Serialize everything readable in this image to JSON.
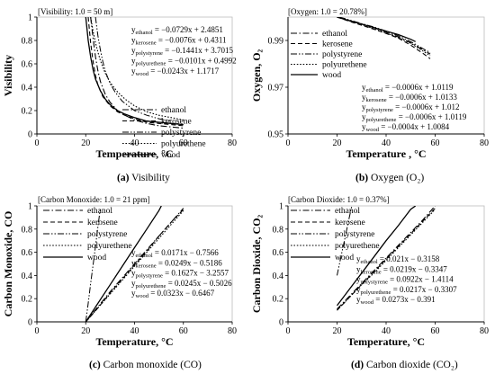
{
  "chart_data": [
    {
      "type": "line",
      "panel": "a",
      "caption_letter": "(a)",
      "caption_text": "Visibility",
      "note": "[Visibility: 1.0 = 50 m]",
      "xlabel": "Temperature, °C",
      "ylabel": "Visibility",
      "xlim": [
        0,
        80
      ],
      "ylim": [
        0,
        1
      ],
      "xticks": [
        "0",
        "20",
        "40",
        "60",
        "80"
      ],
      "yticks": [
        "0",
        "0.2",
        "0.4",
        "0.6",
        "0.8",
        "1"
      ],
      "legend_position": "lower-right",
      "equations_position": "top-right",
      "equations": [
        {
          "var": "y",
          "sub": "ethanol",
          "expr": " = −0.0729x + 2.4851"
        },
        {
          "var": "y",
          "sub": "kerosene",
          "expr": " = −0.0076x + 0.4311"
        },
        {
          "var": "y",
          "sub": "polystyrene",
          "expr": " = −0.1441x + 3.7015"
        },
        {
          "var": "y",
          "sub": "polyurethene",
          "expr": " = −0.0101x + 0.4992"
        },
        {
          "var": "y",
          "sub": "wood",
          "expr": " = −0.0243x + 1.1717"
        }
      ],
      "series": [
        {
          "name": "ethanol",
          "style": "dashdot",
          "x": [
            22,
            23,
            24,
            25,
            26,
            28,
            30,
            33,
            36,
            40,
            45,
            50,
            55,
            60
          ],
          "y": [
            1.0,
            0.82,
            0.66,
            0.54,
            0.45,
            0.34,
            0.27,
            0.2,
            0.16,
            0.12,
            0.09,
            0.07,
            0.06,
            0.05
          ]
        },
        {
          "name": "kerosene",
          "style": "dash",
          "x": [
            21,
            22,
            23,
            24,
            25,
            27,
            30,
            33,
            36,
            40,
            45,
            50,
            55,
            60
          ],
          "y": [
            1.0,
            0.78,
            0.62,
            0.5,
            0.42,
            0.32,
            0.24,
            0.19,
            0.16,
            0.13,
            0.1,
            0.09,
            0.08,
            0.07
          ]
        },
        {
          "name": "polystyrene",
          "style": "dashdotdot",
          "x": [
            24,
            25,
            26,
            27,
            28,
            30,
            32,
            35,
            40,
            45,
            50,
            55
          ],
          "y": [
            1.0,
            0.84,
            0.72,
            0.62,
            0.54,
            0.43,
            0.36,
            0.28,
            0.2,
            0.16,
            0.13,
            0.11
          ]
        },
        {
          "name": "polyurethene",
          "style": "dot",
          "x": [
            22,
            23,
            24,
            25,
            26,
            28,
            30,
            33,
            36,
            40,
            45,
            50,
            55,
            60
          ],
          "y": [
            1.0,
            0.88,
            0.78,
            0.7,
            0.63,
            0.52,
            0.44,
            0.36,
            0.3,
            0.24,
            0.19,
            0.16,
            0.14,
            0.12
          ]
        },
        {
          "name": "wood",
          "style": "solid",
          "x": [
            20,
            21,
            22,
            23,
            24,
            26,
            28,
            30,
            33,
            36,
            40,
            45,
            50,
            55,
            60
          ],
          "y": [
            1.0,
            0.8,
            0.66,
            0.55,
            0.47,
            0.37,
            0.3,
            0.25,
            0.2,
            0.17,
            0.14,
            0.11,
            0.1,
            0.09,
            0.08
          ]
        }
      ]
    },
    {
      "type": "line",
      "panel": "b",
      "caption_letter": "(b)",
      "caption_text": "Oxygen (O₂)",
      "note": "[Oxygen: 1.0 = 20.78%]",
      "xlabel": "Temperature , °C",
      "ylabel": "Oxygen, O₂",
      "xlim": [
        0,
        80
      ],
      "ylim": [
        0.95,
        1
      ],
      "xticks": [
        "0",
        "20",
        "40",
        "60",
        "80"
      ],
      "yticks": [
        "0.95",
        "0.97",
        "0.99"
      ],
      "ytick_values": [
        0.95,
        0.97,
        0.99
      ],
      "legend_position": "top-left",
      "equations_position": "bottom-right",
      "equations": [
        {
          "var": "y",
          "sub": "ethanol",
          "expr": " = −0.0006x + 1.0119"
        },
        {
          "var": "y",
          "sub": "kerosene",
          "expr": " = −0.0006x + 1.0133"
        },
        {
          "var": "y",
          "sub": "polystyrene",
          "expr": " = −0.0006x + 1.012"
        },
        {
          "var": "y",
          "sub": "polyurethene",
          "expr": " = −0.0006x + 1.0119"
        },
        {
          "var": "y",
          "sub": "wood",
          "expr": " = −0.0004x + 1.0084"
        }
      ],
      "series": [
        {
          "name": "ethanol",
          "style": "dashdot",
          "x": [
            20,
            25,
            30,
            35,
            40,
            45,
            50,
            55,
            58
          ],
          "y": [
            1.0,
            0.9985,
            0.997,
            0.9955,
            0.9935,
            0.9915,
            0.989,
            0.986,
            0.9842
          ]
        },
        {
          "name": "kerosene",
          "style": "dash",
          "x": [
            20,
            25,
            30,
            35,
            40,
            45,
            50,
            55,
            58
          ],
          "y": [
            1.0,
            0.9982,
            0.9965,
            0.9948,
            0.993,
            0.991,
            0.988,
            0.9845,
            0.9822
          ]
        },
        {
          "name": "polystyrene",
          "style": "dashdotdot",
          "x": [
            21,
            25,
            30,
            35,
            40,
            45,
            50,
            55,
            58
          ],
          "y": [
            1.0,
            0.9988,
            0.9972,
            0.9958,
            0.994,
            0.992,
            0.9895,
            0.9865,
            0.9848
          ]
        },
        {
          "name": "polyurethene",
          "style": "dot",
          "x": [
            20,
            25,
            30,
            35,
            40,
            45,
            50,
            55,
            58
          ],
          "y": [
            1.0,
            0.9984,
            0.9968,
            0.995,
            0.9932,
            0.9912,
            0.9888,
            0.9855,
            0.9835
          ]
        },
        {
          "name": "wood",
          "style": "solid",
          "x": [
            20,
            25,
            30,
            35,
            40,
            45,
            50,
            52
          ],
          "y": [
            1.0,
            0.9985,
            0.997,
            0.9955,
            0.994,
            0.9925,
            0.9905,
            0.9895
          ]
        }
      ]
    },
    {
      "type": "line",
      "panel": "c",
      "caption_letter": "(c)",
      "caption_text": "Carbon monoxide (CO)",
      "note": "[Carbon Monoxide: 1.0 = 21 ppm]",
      "xlabel": "Temperature, °C",
      "ylabel": "Carbon Monoxide, CO",
      "xlim": [
        0,
        80
      ],
      "ylim": [
        0,
        1
      ],
      "xticks": [
        "0",
        "20",
        "40",
        "60",
        "80"
      ],
      "yticks": [
        "0",
        "0.2",
        "0.4",
        "0.6",
        "0.8",
        "1"
      ],
      "legend_position": "top-left",
      "equations_position": "bottom-right",
      "equations": [
        {
          "var": "y",
          "sub": "ethanol",
          "expr": " = 0.0171x − 0.7566"
        },
        {
          "var": "y",
          "sub": "kerosene",
          "expr": " = 0.0249x − 0.5186"
        },
        {
          "var": "y",
          "sub": "polystyrene",
          "expr": " = 0.1627x − 3.2557"
        },
        {
          "var": "y",
          "sub": "polyurethene",
          "expr": " = 0.0245x − 0.5026"
        },
        {
          "var": "y",
          "sub": "wood",
          "expr": " = 0.0323x − 0.6467"
        }
      ],
      "series": [
        {
          "name": "ethanol",
          "style": "dashdot",
          "x": [
            20,
            25,
            30,
            35,
            40,
            45,
            50,
            55,
            60
          ],
          "y": [
            0.0,
            0.13,
            0.26,
            0.38,
            0.5,
            0.62,
            0.74,
            0.86,
            0.98
          ]
        },
        {
          "name": "kerosene",
          "style": "dash",
          "x": [
            20,
            25,
            30,
            35,
            40,
            45,
            50,
            55,
            60
          ],
          "y": [
            0.0,
            0.12,
            0.25,
            0.37,
            0.49,
            0.61,
            0.74,
            0.86,
            0.97
          ]
        },
        {
          "name": "polystyrene",
          "style": "dashdotdot",
          "x": [
            20,
            21,
            22,
            23,
            24,
            25,
            26
          ],
          "y": [
            0.0,
            0.16,
            0.33,
            0.49,
            0.65,
            0.82,
            0.98
          ]
        },
        {
          "name": "polyurethene",
          "style": "dot",
          "x": [
            20,
            25,
            30,
            35,
            40,
            45,
            50,
            55,
            60
          ],
          "y": [
            0.0,
            0.12,
            0.24,
            0.36,
            0.48,
            0.6,
            0.72,
            0.84,
            0.96
          ]
        },
        {
          "name": "wood",
          "style": "solid",
          "x": [
            20,
            25,
            30,
            35,
            40,
            45,
            50,
            51
          ],
          "y": [
            0.0,
            0.16,
            0.32,
            0.48,
            0.64,
            0.8,
            0.96,
            1.0
          ]
        }
      ]
    },
    {
      "type": "line",
      "panel": "d",
      "caption_letter": "(d)",
      "caption_text": "Carbon dioxide (CO₂)",
      "note": "[Carbon Dioxide: 1.0 = 0.37%]",
      "xlabel": "Temperature, °C",
      "ylabel": "Carbon Dioxide, CO₂",
      "xlim": [
        0,
        80
      ],
      "ylim": [
        0,
        1
      ],
      "xticks": [
        "0",
        "20",
        "40",
        "60",
        "80"
      ],
      "yticks": [
        "0",
        "0.2",
        "0.4",
        "0.6",
        "0.8",
        "1"
      ],
      "legend_position": "top-left",
      "equations_position": "bottom-right",
      "equations": [
        {
          "var": "y",
          "sub": "ethanol",
          "expr": " = 0.021x − 0.3158"
        },
        {
          "var": "y",
          "sub": "kerosene",
          "expr": " = 0.0219x − 0.3347"
        },
        {
          "var": "y",
          "sub": "polystyrene",
          "expr": " = 0.0922x − 1.4114"
        },
        {
          "var": "y",
          "sub": "polyurethene",
          "expr": " = 0.0217x − 0.3307"
        },
        {
          "var": "y",
          "sub": "wood",
          "expr": " = 0.0273x − 0.391"
        }
      ],
      "series": [
        {
          "name": "ethanol",
          "style": "dashdot",
          "x": [
            20,
            25,
            30,
            35,
            40,
            45,
            50,
            55,
            60
          ],
          "y": [
            0.11,
            0.22,
            0.33,
            0.44,
            0.55,
            0.66,
            0.77,
            0.88,
            1.0
          ]
        },
        {
          "name": "kerosene",
          "style": "dash",
          "x": [
            20,
            25,
            30,
            35,
            40,
            45,
            50,
            55,
            60
          ],
          "y": [
            0.1,
            0.21,
            0.32,
            0.43,
            0.54,
            0.65,
            0.76,
            0.87,
            0.98
          ]
        },
        {
          "name": "polystyrene",
          "style": "dashdotdot",
          "x": [
            20,
            21,
            22,
            23,
            24,
            25,
            26
          ],
          "y": [
            0.4,
            0.5,
            0.6,
            0.7,
            0.8,
            0.9,
            1.0
          ]
        },
        {
          "name": "polyurethene",
          "style": "dot",
          "x": [
            20,
            25,
            30,
            35,
            40,
            45,
            50,
            55,
            60
          ],
          "y": [
            0.1,
            0.21,
            0.32,
            0.42,
            0.53,
            0.64,
            0.75,
            0.86,
            0.97
          ]
        },
        {
          "name": "wood",
          "style": "solid",
          "x": [
            20,
            25,
            30,
            35,
            40,
            45,
            50,
            52
          ],
          "y": [
            0.14,
            0.28,
            0.42,
            0.56,
            0.7,
            0.83,
            0.97,
            1.0
          ]
        }
      ]
    }
  ]
}
